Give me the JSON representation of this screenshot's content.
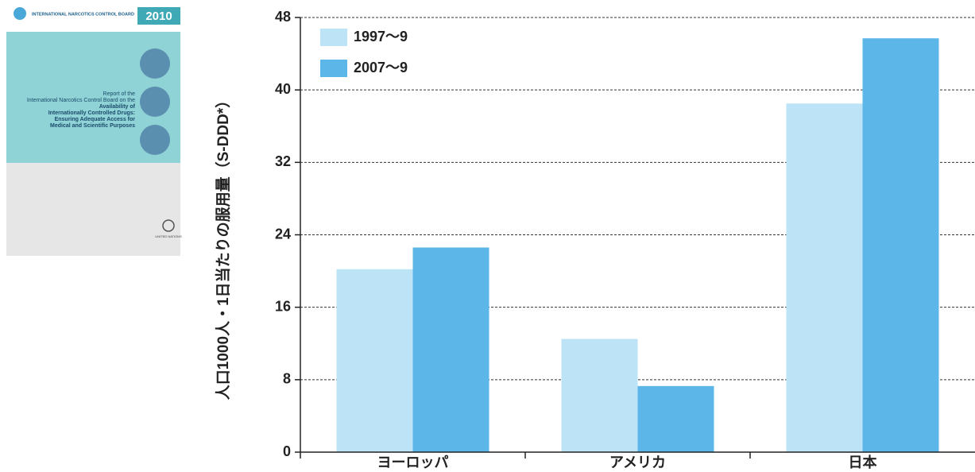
{
  "cover": {
    "org": "INTERNATIONAL NARCOTICS CONTROL BOARD",
    "year": "2010",
    "lines": [
      "Report of the",
      "International Narcotics Control Board on the"
    ],
    "bold_lines": [
      "Availability of",
      "Internationally Controlled Drugs:",
      "Ensuring Adequate Access for",
      "Medical and Scientific Purposes"
    ],
    "publisher": "UNITED NATIONS"
  },
  "chart_data": {
    "type": "bar",
    "y_label": "人口1000人・1日当たりの服用量（S-DDD*）",
    "categories": [
      "ヨーロッパ",
      "アメリカ",
      "日本"
    ],
    "series": [
      {
        "name": "1997～9",
        "color": "#bde3f7",
        "values": [
          20.2,
          12.5,
          38.5
        ]
      },
      {
        "name": "2007～9",
        "color": "#5cb6e8",
        "values": [
          22.6,
          7.3,
          45.7
        ]
      }
    ],
    "ylim": [
      0,
      48
    ],
    "yticks": [
      0,
      8,
      16,
      24,
      32,
      40,
      48
    ],
    "grid": true,
    "legend": "top-left"
  }
}
